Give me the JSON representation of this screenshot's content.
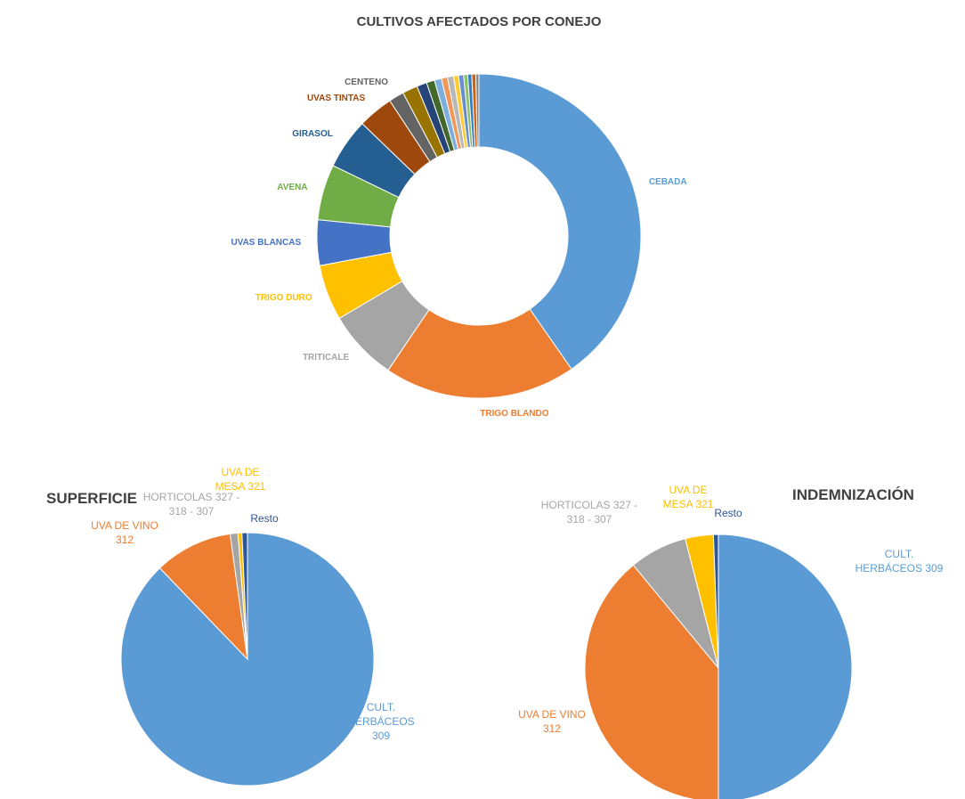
{
  "chart_data": [
    {
      "type": "donut",
      "title": "CULTIVOS AFECTADOS POR CONEJO",
      "categories": [
        "CEBADA",
        "TRIGO BLANDO",
        "TRITICALE",
        "TRIGO DURO",
        "UVAS BLANCAS",
        "AVENA",
        "GIRASOL",
        "UVAS TINTAS",
        "CENTENO",
        null,
        null,
        null,
        null,
        null,
        null,
        null,
        null,
        null,
        null,
        null,
        null
      ],
      "values": [
        40,
        19,
        7,
        5.5,
        4.5,
        5.5,
        5,
        3.5,
        1.5,
        1.5,
        1,
        0.8,
        0.7,
        0.6,
        0.6,
        0.5,
        0.5,
        0.4,
        0.4,
        0.4,
        0.3
      ],
      "colors": [
        "#5b9bd5",
        "#ed7d31",
        "#a5a5a5",
        "#ffc000",
        "#4472c4",
        "#70ad47",
        "#255e91",
        "#9e480e",
        "#636363",
        "#997300",
        "#264478",
        "#43682b",
        "#7cafdd",
        "#f1975a",
        "#b7b7b7",
        "#ffcd33",
        "#698ed0",
        "#8cc168",
        "#327dc2",
        "#d26012",
        "#848484"
      ]
    },
    {
      "type": "pie",
      "title": "SUPERFICIE",
      "categories": [
        "CULT. HERBÁCEOS 309",
        "UVA DE VINO 312",
        "HORTICOLAS 327 - 318 - 307",
        "UVA DE MESA 321",
        "Resto"
      ],
      "values": [
        87.8,
        10,
        1,
        0.5,
        0.7
      ],
      "colors": [
        "#5b9bd5",
        "#ed7d31",
        "#a5a5a5",
        "#ffc000",
        "#2e5597"
      ]
    },
    {
      "type": "pie",
      "title": "INDEMNIZACIÓN",
      "categories": [
        "CULT. HERBÁCEOS 309",
        "UVA DE VINO 312",
        "HORTICOLAS 327 - 318 - 307",
        "UVA DE MESA 321",
        "Resto"
      ],
      "values": [
        50,
        39,
        7,
        3.4,
        0.6
      ],
      "colors": [
        "#5b9bd5",
        "#ed7d31",
        "#a5a5a5",
        "#ffc000",
        "#2e5597"
      ]
    }
  ]
}
